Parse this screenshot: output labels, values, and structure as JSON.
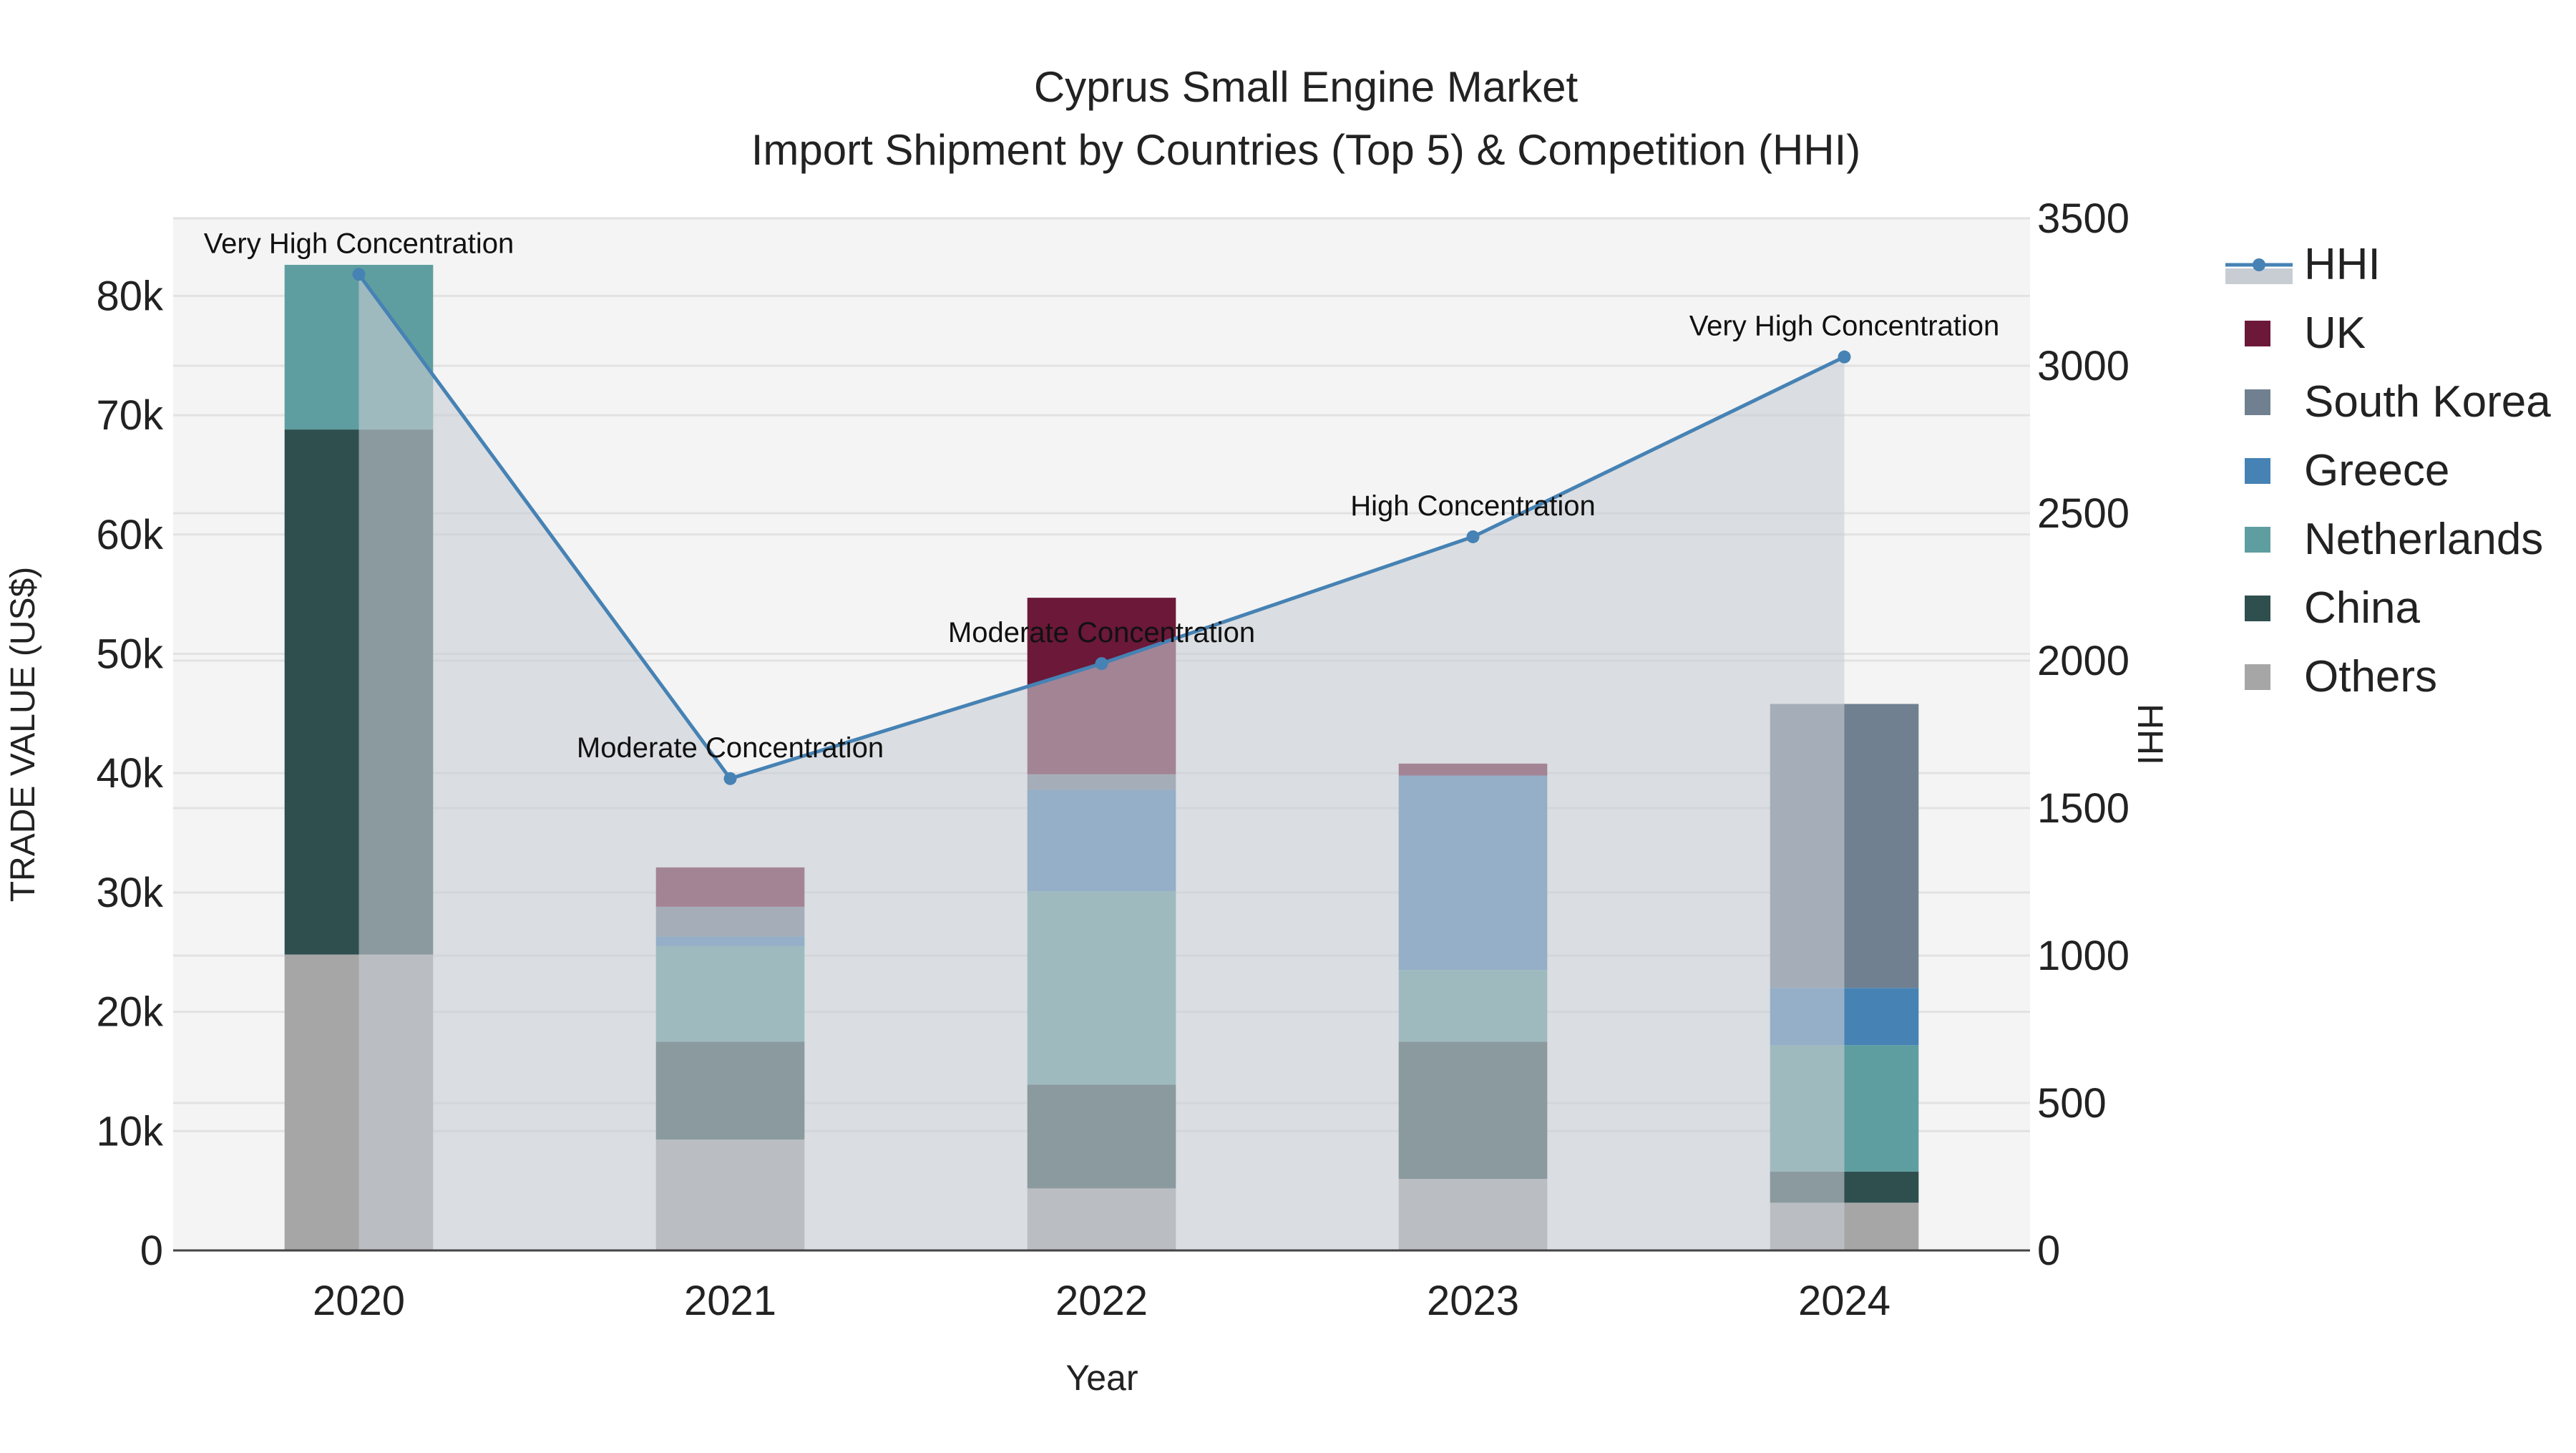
{
  "chart_data": {
    "type": "bar",
    "title_line1": "Cyprus Small Engine Market",
    "title_line2": "Import Shipment by Countries (Top 5) & Competition (HHI)",
    "xlabel": "Year",
    "ylabel": "TRADE VALUE (US$)",
    "y2label": "HHI",
    "categories": [
      "2020",
      "2021",
      "2022",
      "2023",
      "2024"
    ],
    "ylim": [
      0,
      86500
    ],
    "y_ticks": [
      0,
      10000,
      20000,
      30000,
      40000,
      50000,
      60000,
      70000,
      80000
    ],
    "y_tick_labels": [
      "0",
      "10k",
      "20k",
      "30k",
      "40k",
      "50k",
      "60k",
      "70k",
      "80k"
    ],
    "y2lim": [
      0,
      3500
    ],
    "y2_ticks": [
      0,
      500,
      1000,
      1500,
      2000,
      2500,
      3000,
      3500
    ],
    "y2_tick_labels": [
      "0",
      "500",
      "1000",
      "1500",
      "2000",
      "2500",
      "3000",
      "3500"
    ],
    "series": [
      {
        "name": "Others",
        "color": "#A6A6A6",
        "values": [
          24800,
          9300,
          5200,
          6000,
          4000
        ]
      },
      {
        "name": "China",
        "color": "#2F4F4F",
        "values": [
          44000,
          8200,
          8700,
          11500,
          2600
        ]
      },
      {
        "name": "Netherlands",
        "color": "#5F9EA0",
        "values": [
          13800,
          8000,
          16200,
          6000,
          10600
        ]
      },
      {
        "name": "Greece",
        "color": "#4682B4",
        "values": [
          0,
          800,
          8500,
          16300,
          4800
        ]
      },
      {
        "name": "South Korea",
        "color": "#708090",
        "values": [
          0,
          2500,
          1300,
          0,
          23800
        ]
      },
      {
        "name": "UK",
        "color": "#6B1839",
        "values": [
          0,
          3300,
          14800,
          1000,
          0
        ]
      }
    ],
    "hhi": {
      "name": "HHI",
      "color": "#4682B4",
      "fill": "#C8CDD4",
      "values": [
        3310,
        1600,
        1990,
        2420,
        3030
      ],
      "labels": [
        "Very High Concentration",
        "Moderate Concentration",
        "Moderate Concentration",
        "High Concentration",
        "Very High Concentration"
      ]
    },
    "legend": [
      "HHI",
      "UK",
      "South Korea",
      "Greece",
      "Netherlands",
      "China",
      "Others"
    ]
  }
}
